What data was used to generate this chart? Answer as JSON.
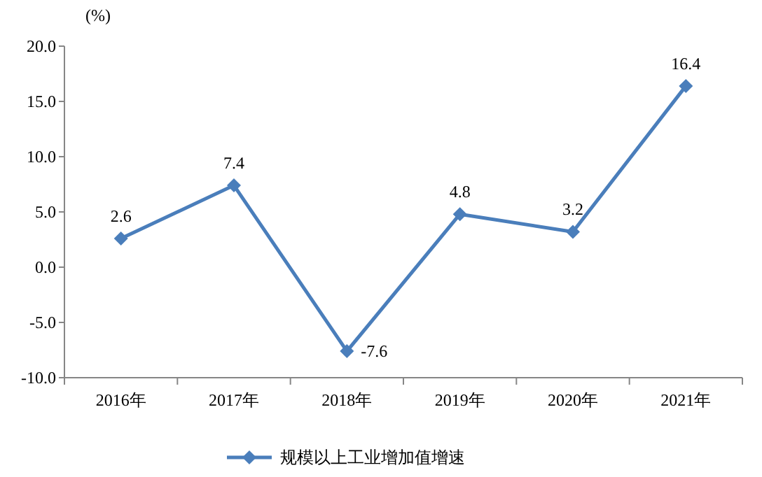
{
  "chart_data": {
    "type": "line",
    "ylabel": "(%)",
    "categories": [
      "2016年",
      "2017年",
      "2018年",
      "2019年",
      "2020年",
      "2021年"
    ],
    "series": [
      {
        "name": "规模以上工业增加值增速",
        "color": "#4a7ebb",
        "values": [
          2.6,
          7.4,
          -7.6,
          4.8,
          3.2,
          16.4
        ]
      }
    ],
    "ylim": [
      -10,
      20
    ],
    "yticks": [
      {
        "value": -10,
        "label": "-10.0"
      },
      {
        "value": -5,
        "label": "-5.0"
      },
      {
        "value": 0,
        "label": "0.0"
      },
      {
        "value": 5,
        "label": "5.0"
      },
      {
        "value": 10,
        "label": "10.0"
      },
      {
        "value": 15,
        "label": "15.0"
      },
      {
        "value": 20,
        "label": "20.0"
      }
    ],
    "data_labels": true,
    "legend": "bottom",
    "marker": "diamond",
    "line_style": "solid",
    "grid": false
  }
}
